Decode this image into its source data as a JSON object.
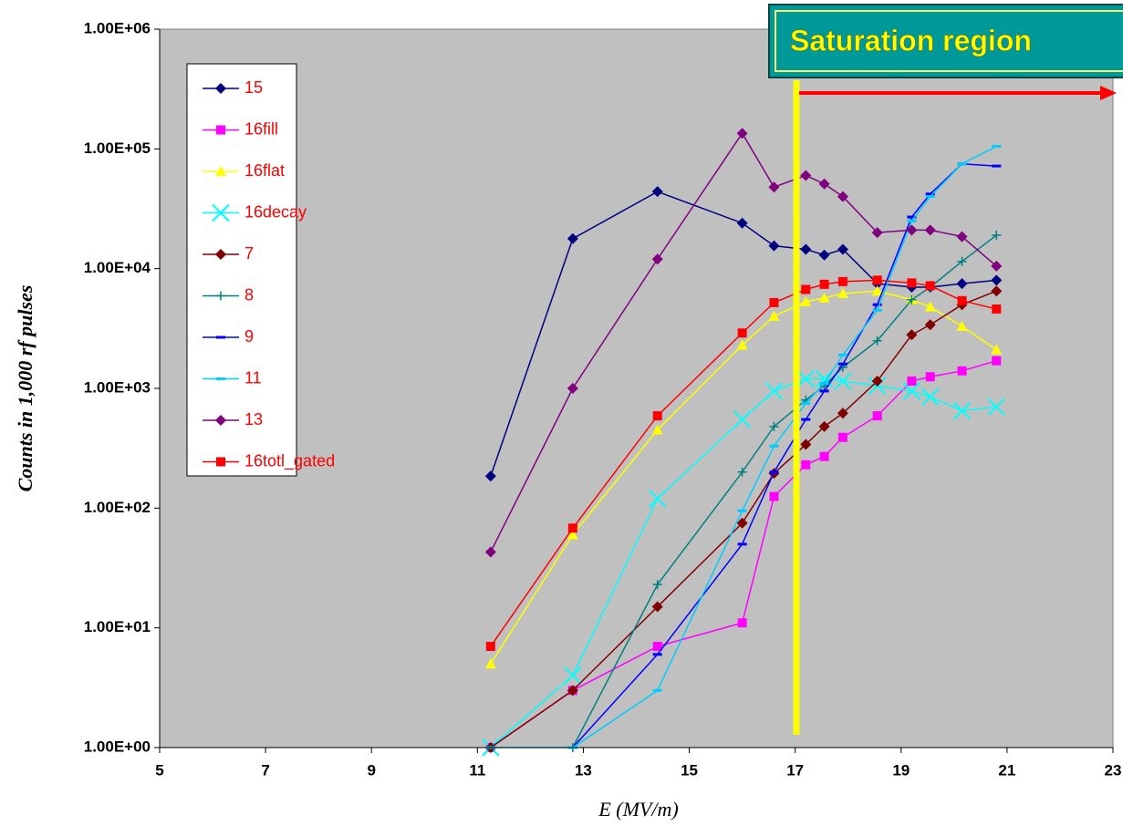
{
  "chart_data": {
    "type": "line",
    "y_label": "Counts in 1,000 rf pulses",
    "x_label": "E (MV/m)",
    "annotation": "Saturation region",
    "x": [
      11.25,
      12.8,
      14.4,
      16.0,
      16.6,
      17.2,
      17.55,
      17.9,
      18.55,
      19.2,
      19.55,
      20.15,
      20.8
    ],
    "xlim": [
      5,
      23
    ],
    "xticks": [
      5,
      7,
      9,
      11,
      13,
      15,
      17,
      19,
      21,
      23
    ],
    "ylim": [
      1,
      1000000
    ],
    "log_y": true,
    "yticks": [
      {
        "value": 1,
        "label": "1.00E+00"
      },
      {
        "value": 10,
        "label": "1.00E+01"
      },
      {
        "value": 100,
        "label": "1.00E+02"
      },
      {
        "value": 1000,
        "label": "1.00E+03"
      },
      {
        "value": 10000,
        "label": "1.00E+04"
      },
      {
        "value": 100000,
        "label": "1.00E+05"
      },
      {
        "value": 1000000,
        "label": "1.00E+06"
      }
    ],
    "legend": "upper left",
    "series": [
      {
        "name": "15",
        "color": "#000080",
        "marker": "diamond",
        "values": [
          185,
          17800,
          44000,
          24000,
          15500,
          14500,
          13000,
          14500,
          7500,
          7000,
          7000,
          7500,
          8000
        ]
      },
      {
        "name": "16fill",
        "color": "#ff00ff",
        "marker": "square",
        "values": [
          1,
          3,
          7,
          11,
          125,
          230,
          270,
          390,
          590,
          1150,
          1250,
          1400,
          1700
        ]
      },
      {
        "name": "16flat",
        "color": "#ffff00",
        "marker": "triangle",
        "values": [
          5,
          60,
          450,
          2300,
          4000,
          5300,
          5700,
          6200,
          6500,
          5500,
          4800,
          3300,
          2100
        ]
      },
      {
        "name": "16decay",
        "color": "#00ffff",
        "marker": "x",
        "values": [
          1,
          4,
          120,
          550,
          950,
          1200,
          1200,
          1150,
          1050,
          950,
          850,
          650,
          700
        ]
      },
      {
        "name": "7",
        "color": "#800000",
        "marker": "diamond",
        "values": [
          1,
          3,
          15,
          75,
          195,
          340,
          480,
          620,
          1150,
          2800,
          3400,
          5000,
          6500
        ]
      },
      {
        "name": "8",
        "color": "#008080",
        "marker": "plus",
        "values": [
          null,
          1,
          23,
          200,
          480,
          800,
          1050,
          1500,
          2500,
          5500,
          7000,
          11500,
          19000
        ]
      },
      {
        "name": "9",
        "color": "#0000ff",
        "marker": "dash",
        "values": [
          null,
          1,
          6,
          50,
          200,
          550,
          950,
          1600,
          5000,
          27000,
          42000,
          75000,
          72000
        ]
      },
      {
        "name": "11",
        "color": "#00ccff",
        "marker": "dash",
        "values": [
          1,
          1,
          3,
          95,
          330,
          750,
          1100,
          1900,
          4500,
          25000,
          40000,
          75000,
          105000
        ]
      },
      {
        "name": "13",
        "color": "#800080",
        "marker": "diamond",
        "values": [
          43,
          1000,
          12000,
          135000,
          48000,
          60000,
          51000,
          40000,
          20000,
          21000,
          21000,
          18500,
          10500
        ]
      },
      {
        "name": "16totl_gated",
        "color": "#ff0000",
        "marker": "square",
        "values": [
          7,
          68,
          590,
          2900,
          5200,
          6700,
          7400,
          7800,
          8000,
          7600,
          7200,
          5400,
          4600
        ]
      }
    ]
  }
}
